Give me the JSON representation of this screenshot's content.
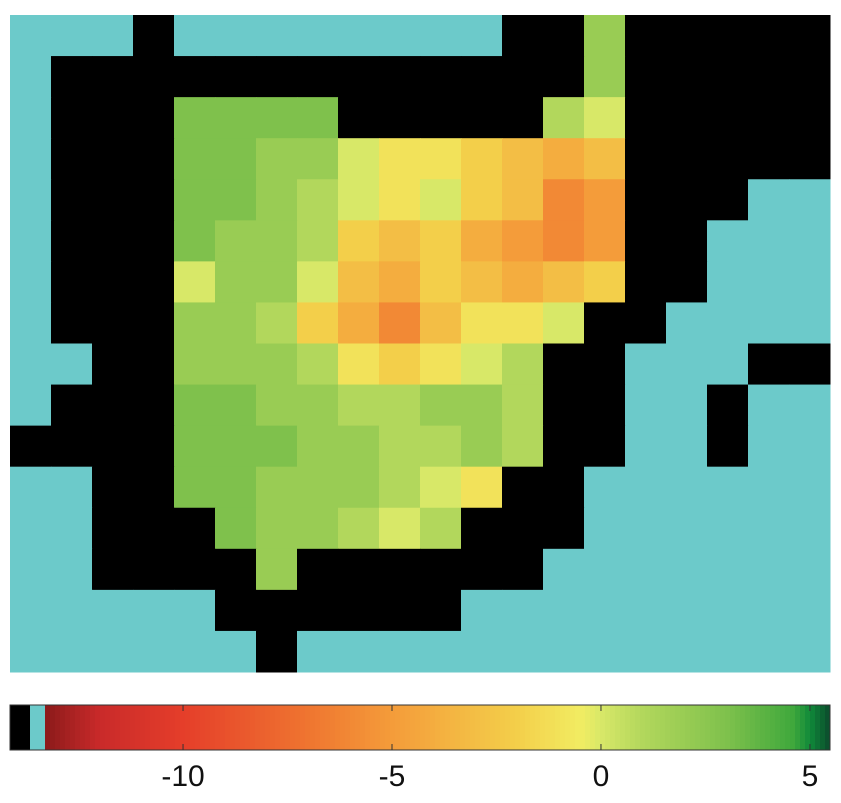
{
  "chart_data": {
    "type": "heatmap",
    "values": [
      [
        -13.7,
        -13.7,
        -13.7,
        -14,
        -13.7,
        -13.7,
        -13.7,
        -13.7,
        -13.7,
        -13.7,
        -13.7,
        -13.7,
        -14,
        -14,
        2,
        -14,
        -14,
        -14,
        -14,
        -14
      ],
      [
        -13.7,
        -14,
        -14,
        -14,
        -14,
        -14,
        -14,
        -14,
        -14,
        -14,
        -14,
        -14,
        -14,
        -14,
        2,
        -14,
        -14,
        -14,
        -14,
        -14
      ],
      [
        -13.7,
        -14,
        -14,
        -14,
        3,
        3,
        3,
        3,
        -14,
        -14,
        -14,
        -14,
        -14,
        1,
        0,
        -14,
        -14,
        -14,
        -14,
        -14
      ],
      [
        -13.7,
        -14,
        -14,
        -14,
        3,
        3,
        2,
        2,
        0,
        -1,
        -1,
        -2,
        -3,
        -4,
        -3,
        -14,
        -14,
        -14,
        -14,
        -14
      ],
      [
        -13.7,
        -14,
        -14,
        -14,
        3,
        3,
        2,
        1,
        0,
        -1,
        0,
        -2,
        -3,
        -6,
        -5,
        -14,
        -14,
        -14,
        -13.7,
        -13.7
      ],
      [
        -13.7,
        -14,
        -14,
        -14,
        3,
        2,
        2,
        1,
        -2,
        -3,
        -2,
        -4,
        -5,
        -6,
        -5,
        -14,
        -14,
        -13.7,
        -13.7,
        -13.7
      ],
      [
        -13.7,
        -14,
        -14,
        -14,
        0,
        2,
        2,
        0,
        -3,
        -4,
        -2,
        -3,
        -4,
        -3,
        -2,
        -14,
        -14,
        -13.7,
        -13.7,
        -13.7
      ],
      [
        -13.7,
        -14,
        -14,
        -14,
        2,
        2,
        1,
        -2,
        -4,
        -6,
        -3,
        -1,
        -1,
        0,
        -14,
        -14,
        -13.7,
        -13.7,
        -13.7,
        -13.7
      ],
      [
        -13.7,
        -13.7,
        -14,
        -14,
        2,
        2,
        2,
        1,
        -1,
        -2,
        -1,
        0,
        1,
        -14,
        -14,
        -13.7,
        -13.7,
        -13.7,
        -14,
        -14
      ],
      [
        -13.7,
        -14,
        -14,
        -14,
        3,
        3,
        2,
        2,
        1,
        1,
        2,
        2,
        1,
        -14,
        -14,
        -13.7,
        -13.7,
        -14,
        -13.7,
        -13.7
      ],
      [
        -14,
        -14,
        -14,
        -14,
        3,
        3,
        3,
        2,
        2,
        1,
        1,
        2,
        1,
        -14,
        -14,
        -13.7,
        -13.7,
        -14,
        -13.7,
        -13.7
      ],
      [
        -13.7,
        -13.7,
        -14,
        -14,
        3,
        3,
        2,
        2,
        2,
        1,
        0,
        -1,
        -14,
        -14,
        -13.7,
        -13.7,
        -13.7,
        -13.7,
        -13.7,
        -13.7
      ],
      [
        -13.7,
        -13.7,
        -14,
        -14,
        -14,
        3,
        2,
        2,
        1,
        0,
        1,
        -14,
        -14,
        -14,
        -13.7,
        -13.7,
        -13.7,
        -13.7,
        -13.7,
        -13.7
      ],
      [
        -13.7,
        -13.7,
        -14,
        -14,
        -14,
        -14,
        2,
        -14,
        -14,
        -14,
        -14,
        -14,
        -14,
        -13.7,
        -13.7,
        -13.7,
        -13.7,
        -13.7,
        -13.7,
        -13.7
      ],
      [
        -13.7,
        -13.7,
        -13.7,
        -13.7,
        -13.7,
        -14,
        -14,
        -14,
        -14,
        -14,
        -14,
        -13.7,
        -13.7,
        -13.7,
        -13.7,
        -13.7,
        -13.7,
        -13.7,
        -13.7,
        -13.7
      ],
      [
        -13.7,
        -13.7,
        -13.7,
        -13.7,
        -13.7,
        -13.7,
        -14,
        -13.7,
        -13.7,
        -13.7,
        -13.7,
        -13.7,
        -13.7,
        -13.7,
        -13.7,
        -13.7,
        -13.7,
        -13.7,
        -13.7,
        -13.7
      ]
    ],
    "colorbar_lim": [
      -14.14,
      5.48
    ],
    "colorbar_ticks": [
      -10,
      -5,
      0,
      5
    ],
    "colorscale": [
      {
        "value": -14.14,
        "color": "#000000"
      },
      {
        "value": -13.71,
        "color": "#000000"
      },
      {
        "value": -13.71,
        "color": "#6ccaca"
      },
      {
        "value": -13.3,
        "color": "#6ccaca"
      },
      {
        "value": -13.3,
        "color": "#8b1a1a"
      },
      {
        "value": -12,
        "color": "#c92a2a"
      },
      {
        "value": -10,
        "color": "#e53e2a"
      },
      {
        "value": -7,
        "color": "#ef7530"
      },
      {
        "value": -5,
        "color": "#f49c3a"
      },
      {
        "value": -2,
        "color": "#f3cf4a"
      },
      {
        "value": -0.5,
        "color": "#f2ec62"
      },
      {
        "value": 0,
        "color": "#d8e868"
      },
      {
        "value": 1,
        "color": "#b2d75c"
      },
      {
        "value": 3,
        "color": "#7fc14c"
      },
      {
        "value": 4.6,
        "color": "#3fa83c"
      },
      {
        "value": 5,
        "color": "#108a3a"
      },
      {
        "value": 5.48,
        "color": "#0b4a2c"
      }
    ]
  }
}
